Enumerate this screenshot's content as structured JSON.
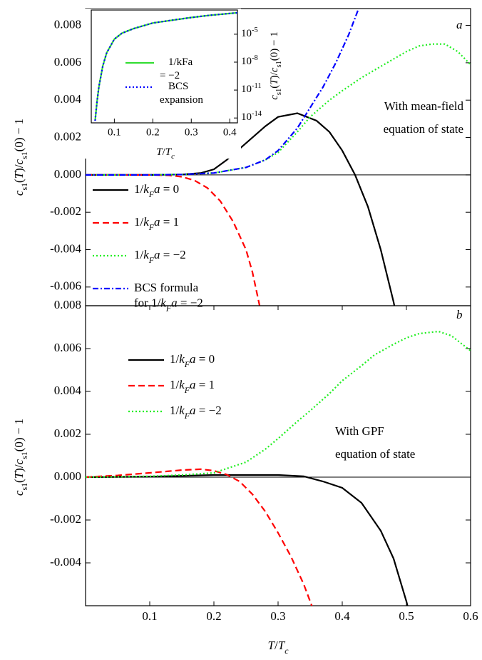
{
  "chart_data": [
    {
      "type": "line",
      "panel_label": "a",
      "y_label": "cs1(T)/cs1(0) − 1",
      "annotation": [
        "With mean-field",
        "equation of state"
      ],
      "xlim": [
        0,
        0.6
      ],
      "ylim": [
        -0.007,
        0.0089
      ],
      "yticks": [
        0.008,
        0.006,
        0.004,
        0.002,
        {
          "value": 0,
          "label": "0.000"
        },
        -0.002,
        -0.004,
        -0.006
      ],
      "zero_line": true,
      "series": [
        {
          "name": "1/kFa = 0",
          "color": "#000000",
          "dash": "solid",
          "x": [
            0,
            0.05,
            0.1,
            0.15,
            0.18,
            0.2,
            0.22,
            0.25,
            0.28,
            0.3,
            0.33,
            0.36,
            0.38,
            0.4,
            0.42,
            0.44,
            0.46,
            0.48,
            0.49
          ],
          "values": [
            0,
            0,
            0,
            2e-05,
            0.0001,
            0.0003,
            0.0008,
            0.0017,
            0.0026,
            0.0031,
            0.0033,
            0.0029,
            0.0023,
            0.0013,
            0,
            -0.0017,
            -0.004,
            -0.0068,
            -0.0085
          ]
        },
        {
          "name": "1/kFa = 1",
          "color": "#ff0000",
          "dash": "dashed",
          "x": [
            0,
            0.05,
            0.1,
            0.13,
            0.15,
            0.17,
            0.19,
            0.21,
            0.23,
            0.25,
            0.26,
            0.27,
            0.28
          ],
          "values": [
            0,
            0,
            0,
            -2e-05,
            -0.0001,
            -0.0003,
            -0.0007,
            -0.0014,
            -0.0025,
            -0.004,
            -0.0052,
            -0.0068,
            -0.0085
          ]
        },
        {
          "name": "1/kFa = −2",
          "color": "#22ee22",
          "dash": "dotted",
          "x": [
            0,
            0.1,
            0.15,
            0.2,
            0.25,
            0.28,
            0.3,
            0.33,
            0.35,
            0.38,
            0.4,
            0.43,
            0.45,
            0.48,
            0.5,
            0.52,
            0.54,
            0.56,
            0.58,
            0.6
          ],
          "values": [
            0,
            0,
            2e-05,
            0.0001,
            0.0004,
            0.0008,
            0.0012,
            0.0023,
            0.0031,
            0.004,
            0.0045,
            0.0052,
            0.0056,
            0.0062,
            0.0066,
            0.0069,
            0.007,
            0.007,
            0.0066,
            0.0059
          ]
        },
        {
          "name": "BCS formula for 1/kFa = −2",
          "color": "#0000ff",
          "dash": "dashdot",
          "x": [
            0,
            0.1,
            0.15,
            0.2,
            0.25,
            0.28,
            0.3,
            0.33,
            0.35,
            0.37,
            0.39,
            0.41,
            0.43
          ],
          "values": [
            0,
            0,
            2e-05,
            0.0001,
            0.0004,
            0.0008,
            0.0013,
            0.0025,
            0.0036,
            0.0047,
            0.006,
            0.0075,
            0.0093
          ]
        }
      ]
    },
    {
      "type": "line",
      "panel_label": "b",
      "y_label": "cs1(T)/cs1(0) − 1",
      "x_label": "T/Tc",
      "annotation": [
        "With GPF",
        "equation of state"
      ],
      "xlim": [
        0,
        0.6
      ],
      "ylim": [
        -0.006,
        0.008
      ],
      "xticks": [
        0.1,
        0.2,
        0.3,
        0.4,
        0.5,
        0.6
      ],
      "yticks": [
        0.008,
        0.006,
        0.004,
        0.002,
        {
          "value": 0,
          "label": "0.000"
        },
        -0.002,
        -0.004
      ],
      "zero_line": true,
      "series": [
        {
          "name": "1/kFa = 0",
          "color": "#000000",
          "dash": "solid",
          "x": [
            0,
            0.1,
            0.2,
            0.3,
            0.34,
            0.37,
            0.4,
            0.43,
            0.46,
            0.48,
            0.5,
            0.51
          ],
          "values": [
            0,
            2e-05,
            0.0001,
            0.0001,
            4e-05,
            -0.0002,
            -0.0005,
            -0.0012,
            -0.0025,
            -0.0038,
            -0.0058,
            -0.007
          ]
        },
        {
          "name": "1/kFa = 1",
          "color": "#ff0000",
          "dash": "dashed",
          "x": [
            0,
            0.05,
            0.1,
            0.15,
            0.18,
            0.2,
            0.22,
            0.24,
            0.26,
            0.28,
            0.3,
            0.32,
            0.34,
            0.36
          ],
          "values": [
            0,
            8e-05,
            0.0002,
            0.00033,
            0.00037,
            0.0003,
            0.00012,
            -0.0002,
            -0.0008,
            -0.0016,
            -0.0026,
            -0.0037,
            -0.005,
            -0.0066
          ]
        },
        {
          "name": "1/kFa = −2",
          "color": "#22ee22",
          "dash": "dotted",
          "x": [
            0,
            0.1,
            0.15,
            0.2,
            0.25,
            0.28,
            0.3,
            0.33,
            0.35,
            0.38,
            0.4,
            0.43,
            0.45,
            0.48,
            0.5,
            0.52,
            0.55,
            0.57,
            0.6
          ],
          "values": [
            0,
            4e-05,
            0.0001,
            0.0002,
            0.0007,
            0.0013,
            0.0018,
            0.0026,
            0.0031,
            0.0039,
            0.0045,
            0.0052,
            0.0057,
            0.0062,
            0.0065,
            0.0067,
            0.0068,
            0.0066,
            0.0059
          ]
        }
      ]
    },
    {
      "type": "line",
      "inset": true,
      "y_label": "cs1(T)/cs1(0) − 1",
      "x_label": "T/Tc",
      "log_y": true,
      "xlim": [
        0.04,
        0.42
      ],
      "ylim": [
        3e-15,
        0.004
      ],
      "xticks": [
        0.1,
        0.2,
        0.3,
        0.4
      ],
      "yticks": [
        {
          "value": 1e-05,
          "label": "10-5"
        },
        {
          "value": 1e-08,
          "label": "10-8"
        },
        {
          "value": 1e-11,
          "label": "10-11"
        },
        {
          "value": 1e-14,
          "label": "10-14"
        }
      ],
      "series": [
        {
          "name": "1/kFa = −2",
          "color": "#33dd33",
          "dash": "solid",
          "x": [
            0.05,
            0.055,
            0.06,
            0.07,
            0.08,
            0.1,
            0.12,
            0.15,
            0.2,
            0.25,
            0.3,
            0.35,
            0.42
          ],
          "values": [
            5e-15,
            6e-13,
            2.5e-11,
            4e-09,
            1e-07,
            3e-06,
            1.3e-05,
            4e-05,
            0.00016,
            0.00032,
            0.00063,
            0.0011,
            0.002
          ]
        },
        {
          "name": "BCS expansion",
          "color": "#0000ff",
          "dash": "dotted",
          "x": [
            0.05,
            0.055,
            0.06,
            0.07,
            0.08,
            0.1,
            0.12,
            0.15,
            0.2,
            0.25,
            0.3,
            0.35,
            0.42
          ],
          "values": [
            5e-15,
            6e-13,
            2.5e-11,
            4e-09,
            1e-07,
            3e-06,
            1.3e-05,
            4e-05,
            0.00016,
            0.00032,
            0.00063,
            0.0011,
            0.002
          ]
        }
      ]
    }
  ]
}
